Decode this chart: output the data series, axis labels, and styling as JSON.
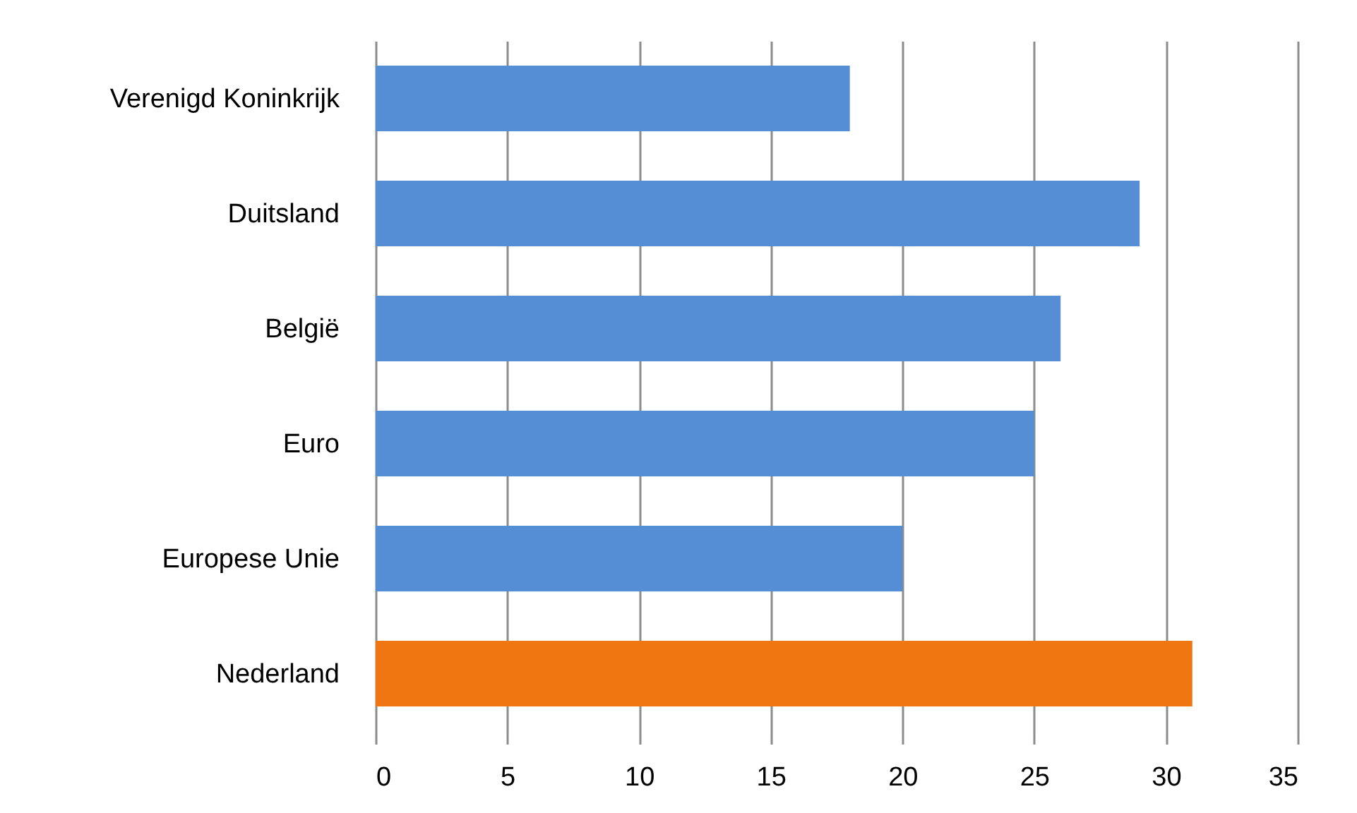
{
  "chart_data": {
    "type": "bar",
    "orientation": "horizontal",
    "categories": [
      "Verenigd Koninkrijk",
      "Duitsland",
      "België",
      "Euro",
      "Europese Unie",
      "Nederland"
    ],
    "values": [
      18,
      29,
      26,
      25,
      20,
      31
    ],
    "colors": [
      "#558ed5",
      "#558ed5",
      "#558ed5",
      "#558ed5",
      "#558ed5",
      "#f07611"
    ],
    "xlim": [
      0,
      35
    ],
    "xticks": [
      0,
      5,
      10,
      15,
      20,
      25,
      30,
      35
    ],
    "grid": "x"
  }
}
